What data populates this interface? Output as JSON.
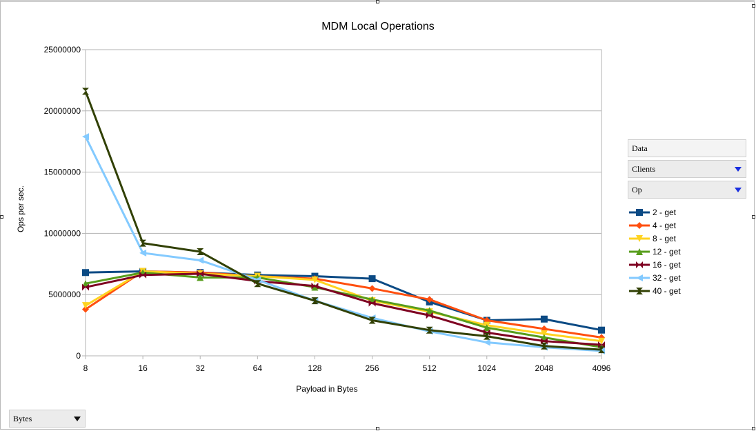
{
  "chart_data": {
    "type": "line",
    "title": "MDM Local Operations",
    "xlabel": "Payload in Bytes",
    "ylabel": "Ops per sec.",
    "categories": [
      "8",
      "16",
      "32",
      "64",
      "128",
      "256",
      "512",
      "1024",
      "2048",
      "4096"
    ],
    "ylim": [
      0,
      25000000
    ],
    "yticks": [
      "0",
      "5000000",
      "10000000",
      "15000000",
      "20000000",
      "25000000"
    ],
    "yticks_values": [
      0,
      5000000,
      10000000,
      15000000,
      20000000,
      25000000
    ],
    "grid": "horizontal",
    "legend_position": "right",
    "series": [
      {
        "name": "2 - get",
        "color": "#0b4a84",
        "marker": "square",
        "values": [
          6800000,
          6900000,
          6800000,
          6600000,
          6500000,
          6300000,
          4400000,
          2900000,
          3000000,
          2100000
        ]
      },
      {
        "name": "4 - get",
        "color": "#ff4f0f",
        "marker": "diamond",
        "values": [
          3800000,
          6900000,
          6800000,
          6500000,
          6300000,
          5500000,
          4600000,
          2900000,
          2200000,
          1500000
        ]
      },
      {
        "name": "8 - get",
        "color": "#ffd320",
        "marker": "triangle-down",
        "values": [
          4100000,
          6900000,
          6700000,
          6500000,
          6200000,
          4500000,
          3600000,
          2500000,
          1800000,
          1200000
        ]
      },
      {
        "name": "12 - get",
        "color": "#579d1c",
        "marker": "triangle-up",
        "values": [
          5900000,
          6800000,
          6400000,
          6400000,
          5600000,
          4600000,
          3700000,
          2300000,
          1500000,
          700000
        ]
      },
      {
        "name": "16 - get",
        "color": "#7e0021",
        "marker": "bowtie",
        "values": [
          5600000,
          6600000,
          6700000,
          6100000,
          5700000,
          4300000,
          3300000,
          1900000,
          1200000,
          900000
        ]
      },
      {
        "name": "32 - get",
        "color": "#83caff",
        "marker": "triangle-left",
        "values": [
          17900000,
          8400000,
          7800000,
          6200000,
          4500000,
          3100000,
          2000000,
          1100000,
          700000,
          400000
        ]
      },
      {
        "name": "40 - get",
        "color": "#314004",
        "marker": "hourglass",
        "values": [
          21600000,
          9200000,
          8500000,
          5900000,
          4500000,
          2900000,
          2100000,
          1600000,
          800000,
          500000
        ]
      }
    ]
  },
  "fields": {
    "data_label": "Data",
    "clients_label": "Clients",
    "op_label": "Op",
    "bytes_label": "Bytes"
  }
}
